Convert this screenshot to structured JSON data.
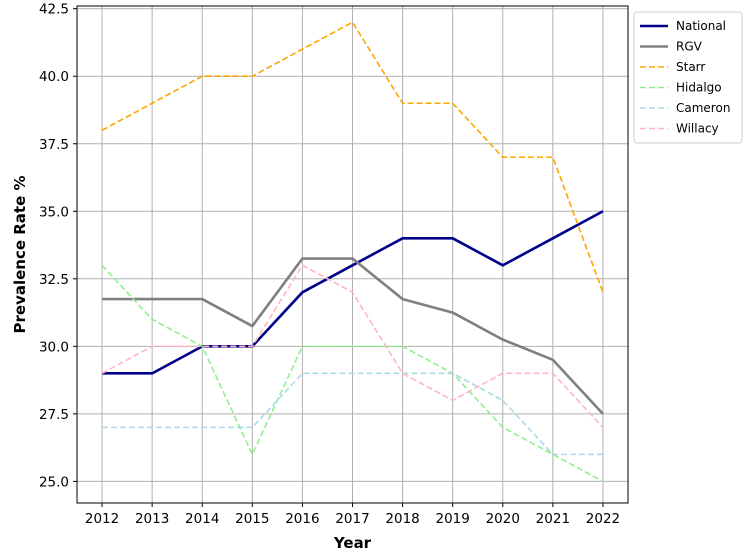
{
  "chart_data": {
    "type": "line",
    "xlabel": "Year",
    "ylabel": "Prevalence Rate %",
    "x": [
      2012,
      2013,
      2014,
      2015,
      2016,
      2017,
      2018,
      2019,
      2020,
      2021,
      2022
    ],
    "xlim": [
      2011.5,
      2022.5
    ],
    "ylim": [
      24.2,
      42.6
    ],
    "yticks": [
      25.0,
      27.5,
      30.0,
      32.5,
      35.0,
      37.5,
      40.0,
      42.5
    ],
    "ytick_labels": [
      "25.0",
      "27.5",
      "30.0",
      "32.5",
      "35.0",
      "37.5",
      "40.0",
      "42.5"
    ],
    "grid": true,
    "legend_position": "outside-top-right",
    "series": [
      {
        "name": "National",
        "values": [
          29,
          29,
          30,
          30,
          32,
          33,
          34,
          34,
          33,
          34,
          35
        ],
        "color": "#00008b",
        "style": "solid"
      },
      {
        "name": "RGV",
        "values": [
          31.75,
          31.75,
          31.75,
          30.75,
          33.25,
          33.25,
          31.75,
          31.25,
          30.25,
          29.5,
          27.5
        ],
        "color": "#808080",
        "style": "solid"
      },
      {
        "name": "Starr",
        "values": [
          38,
          39,
          40,
          40,
          41,
          42,
          39,
          39,
          37,
          37,
          32
        ],
        "color": "#ffa500",
        "style": "dashed"
      },
      {
        "name": "Hidalgo",
        "values": [
          33,
          31,
          30,
          26,
          30,
          30,
          30,
          29,
          27,
          26,
          25
        ],
        "color": "#90ee90",
        "style": "dashed"
      },
      {
        "name": "Cameron",
        "values": [
          27,
          27,
          27,
          27,
          29,
          29,
          29,
          29,
          28,
          26,
          26
        ],
        "color": "#add8e6",
        "style": "dashed"
      },
      {
        "name": "Willacy",
        "values": [
          29,
          30,
          30,
          30,
          33,
          32,
          29,
          28,
          29,
          29,
          27
        ],
        "color": "#ffb6c1",
        "style": "dashed"
      }
    ]
  }
}
